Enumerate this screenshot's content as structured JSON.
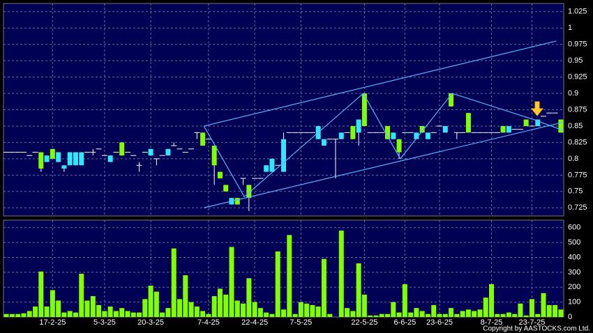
{
  "chart_data": [
    {
      "type": "candlestick",
      "open": [
        0.81,
        0.81,
        0.81,
        0.81,
        0.805,
        0.81,
        0.785,
        0.805,
        0.8,
        0.81,
        0.79,
        0.81,
        0.81,
        0.81,
        0.81,
        0.81,
        0.815,
        0.805,
        0.805,
        0.81,
        0.805,
        0.81,
        0.805,
        0.79,
        0.81,
        0.815,
        0.8,
        0.805,
        0.815,
        0.82,
        0.815,
        0.81,
        0.815,
        0.84,
        0.82,
        0.83,
        0.79,
        0.77,
        0.75,
        0.74,
        0.73,
        0.77,
        0.74,
        0.77,
        0.77,
        0.79,
        0.8,
        0.79,
        0.83,
        0.84,
        0.84,
        0.84,
        0.84,
        0.84,
        0.85,
        0.83,
        0.83,
        0.83,
        0.84,
        0.84,
        0.83,
        0.86,
        0.85,
        0.84,
        0.84,
        0.84,
        0.83,
        0.84,
        0.81,
        0.84,
        0.84,
        0.84,
        0.84,
        0.84,
        0.84,
        0.85,
        0.85,
        0.88,
        0.84,
        0.84,
        0.84,
        0.84,
        0.84,
        0.84,
        0.84,
        0.84,
        0.84,
        0.85,
        0.845,
        0.845,
        0.85,
        0.85,
        0.86,
        0.865,
        0.87,
        0.87,
        0.84
      ],
      "high": [
        0.81,
        0.81,
        0.81,
        0.81,
        0.805,
        0.81,
        0.81,
        0.805,
        0.815,
        0.81,
        0.79,
        0.81,
        0.81,
        0.81,
        0.81,
        0.815,
        0.815,
        0.805,
        0.805,
        0.81,
        0.825,
        0.81,
        0.805,
        0.795,
        0.81,
        0.815,
        0.8,
        0.805,
        0.815,
        0.825,
        0.815,
        0.81,
        0.815,
        0.84,
        0.84,
        0.83,
        0.82,
        0.78,
        0.76,
        0.74,
        0.74,
        0.77,
        0.76,
        0.77,
        0.77,
        0.79,
        0.8,
        0.79,
        0.84,
        0.84,
        0.84,
        0.84,
        0.84,
        0.84,
        0.85,
        0.83,
        0.83,
        0.83,
        0.84,
        0.84,
        0.85,
        0.86,
        0.9,
        0.84,
        0.84,
        0.84,
        0.85,
        0.84,
        0.83,
        0.84,
        0.84,
        0.84,
        0.85,
        0.84,
        0.84,
        0.85,
        0.85,
        0.9,
        0.84,
        0.84,
        0.87,
        0.84,
        0.84,
        0.84,
        0.84,
        0.84,
        0.85,
        0.85,
        0.845,
        0.845,
        0.86,
        0.85,
        0.86,
        0.865,
        0.87,
        0.87,
        0.86
      ],
      "low": [
        0.81,
        0.81,
        0.81,
        0.81,
        0.805,
        0.81,
        0.78,
        0.795,
        0.8,
        0.795,
        0.78,
        0.79,
        0.79,
        0.79,
        0.81,
        0.805,
        0.815,
        0.805,
        0.795,
        0.81,
        0.805,
        0.81,
        0.805,
        0.78,
        0.81,
        0.805,
        0.79,
        0.805,
        0.805,
        0.82,
        0.815,
        0.81,
        0.815,
        0.83,
        0.82,
        0.83,
        0.76,
        0.77,
        0.75,
        0.73,
        0.73,
        0.76,
        0.72,
        0.77,
        0.77,
        0.78,
        0.78,
        0.79,
        0.78,
        0.84,
        0.84,
        0.84,
        0.84,
        0.84,
        0.83,
        0.82,
        0.83,
        0.77,
        0.83,
        0.84,
        0.83,
        0.82,
        0.85,
        0.84,
        0.84,
        0.84,
        0.83,
        0.83,
        0.8,
        0.84,
        0.84,
        0.83,
        0.84,
        0.83,
        0.84,
        0.85,
        0.84,
        0.88,
        0.83,
        0.84,
        0.84,
        0.84,
        0.84,
        0.84,
        0.84,
        0.84,
        0.84,
        0.84,
        0.845,
        0.845,
        0.85,
        0.85,
        0.85,
        0.865,
        0.87,
        0.87,
        0.84
      ],
      "close": [
        0.81,
        0.81,
        0.81,
        0.81,
        0.805,
        0.81,
        0.81,
        0.795,
        0.815,
        0.795,
        0.785,
        0.79,
        0.79,
        0.79,
        0.81,
        0.81,
        0.815,
        0.805,
        0.795,
        0.81,
        0.825,
        0.81,
        0.805,
        0.79,
        0.81,
        0.805,
        0.8,
        0.805,
        0.805,
        0.82,
        0.815,
        0.81,
        0.815,
        0.84,
        0.84,
        0.83,
        0.82,
        0.78,
        0.76,
        0.73,
        0.74,
        0.77,
        0.76,
        0.77,
        0.77,
        0.78,
        0.78,
        0.79,
        0.78,
        0.84,
        0.84,
        0.84,
        0.84,
        0.84,
        0.83,
        0.82,
        0.83,
        0.83,
        0.83,
        0.84,
        0.85,
        0.84,
        0.9,
        0.84,
        0.84,
        0.84,
        0.85,
        0.83,
        0.83,
        0.84,
        0.84,
        0.83,
        0.85,
        0.83,
        0.84,
        0.85,
        0.84,
        0.9,
        0.84,
        0.84,
        0.87,
        0.84,
        0.84,
        0.84,
        0.84,
        0.84,
        0.85,
        0.84,
        0.845,
        0.845,
        0.86,
        0.85,
        0.85,
        0.865,
        0.87,
        0.87,
        0.86
      ],
      "up_color": "#80ff00",
      "down_color": "#33e6ff",
      "flat_color": "#ffffff",
      "ylim": [
        0.7125,
        1.0375
      ],
      "yticks": [
        1.025,
        1,
        0.975,
        0.95,
        0.925,
        0.9,
        0.875,
        0.85,
        0.825,
        0.8,
        0.775,
        0.75,
        0.725
      ],
      "grid": true,
      "lines": [
        {
          "color": "#5ab4ff",
          "x": [
            34.2,
            95.2
          ],
          "values": [
            0.85,
            0.98
          ]
        },
        {
          "color": "#5ab4ff",
          "x": [
            34.2,
            96.5
          ],
          "values": [
            0.725,
            0.856
          ]
        },
        {
          "color": "#5ab4ff",
          "x": [
            34.2,
            41.2,
            61.8,
            68.2,
            77.2,
            91.3,
            96.5
          ],
          "values": [
            0.85,
            0.742,
            0.9,
            0.8,
            0.9,
            0.86,
            0.843
          ]
        }
      ]
    },
    {
      "type": "bar",
      "values": [
        20,
        20,
        20,
        25,
        40,
        70,
        305,
        70,
        180,
        110,
        30,
        40,
        30,
        290,
        110,
        140,
        80,
        40,
        70,
        40,
        60,
        40,
        30,
        30,
        120,
        210,
        170,
        30,
        60,
        460,
        120,
        280,
        100,
        70,
        40,
        20,
        140,
        190,
        150,
        470,
        110,
        90,
        260,
        100,
        60,
        30,
        20,
        440,
        50,
        550,
        20,
        100,
        90,
        80,
        70,
        390,
        20,
        0,
        580,
        60,
        40,
        360,
        150,
        10,
        10,
        20,
        20,
        100,
        30,
        220,
        30,
        60,
        40,
        20,
        80,
        20,
        20,
        60,
        20,
        40,
        50,
        40,
        50,
        130,
        220,
        20,
        20,
        30,
        20,
        90,
        10,
        120,
        20,
        160,
        80,
        80,
        50
      ],
      "color": "#80ff00",
      "ylim": [
        0,
        650
      ],
      "yticks": [
        0,
        100,
        200,
        300,
        400,
        500,
        600
      ],
      "grid": true,
      "xticks": [
        {
          "value": 8,
          "label": "17-2-25"
        },
        {
          "value": 17,
          "label": "5-3-25"
        },
        {
          "value": 25,
          "label": "20-3-25"
        },
        {
          "value": 35,
          "label": "7-4-25"
        },
        {
          "value": 43,
          "label": "22-4-25"
        },
        {
          "value": 51,
          "label": "7-5-25"
        },
        {
          "value": 62,
          "label": "22-5-25"
        },
        {
          "value": 69,
          "label": "6-6-25"
        },
        {
          "value": 75,
          "label": "23-6-25"
        },
        {
          "value": 84,
          "label": "8-7-25"
        },
        {
          "value": 91,
          "label": "23-7-25"
        }
      ],
      "copyright": "Copyright by AASTOCKS.com Ltd."
    }
  ]
}
